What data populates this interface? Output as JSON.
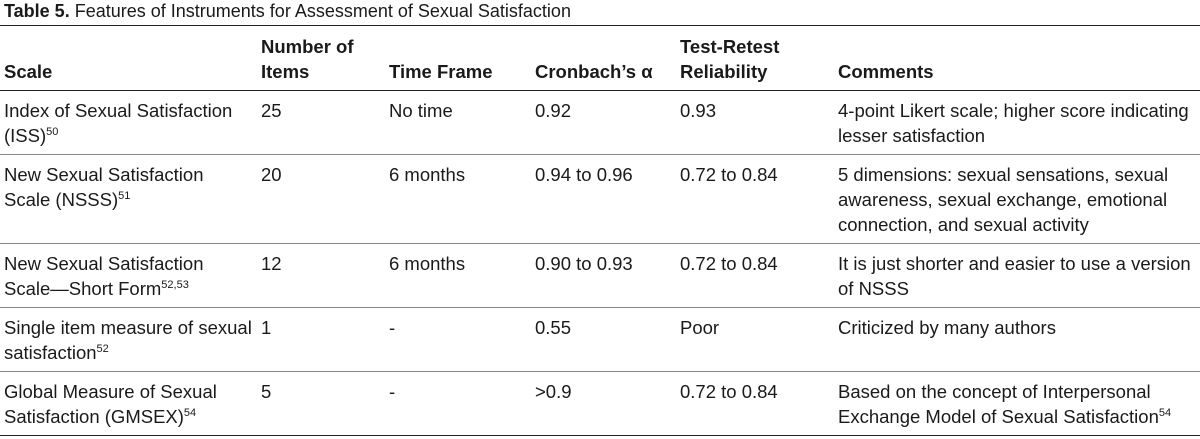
{
  "caption": {
    "label": "Table 5.",
    "text": "Features of Instruments for Assessment of Sexual Satisfaction"
  },
  "headers": {
    "scale": "Scale",
    "items_line1": "Number of",
    "items_line2": "Items",
    "time_frame": "Time Frame",
    "alpha": "Cronbach’s α",
    "retest_line1": "Test-Retest",
    "retest_line2": "Reliability",
    "comments": "Comments"
  },
  "rows": [
    {
      "scale": "Index of Sexual Satisfaction (ISS)",
      "ref": "50",
      "items": "25",
      "time_frame": "No time",
      "alpha": "0.92",
      "retest": "0.93",
      "comments": "4-point Likert scale; higher score indicating lesser satisfaction",
      "comments_ref": ""
    },
    {
      "scale": "New Sexual Satisfaction Scale (NSSS)",
      "ref": "51",
      "items": "20",
      "time_frame": "6 months",
      "alpha": "0.94 to 0.96",
      "retest": "0.72 to 0.84",
      "comments": "5 dimensions: sexual sensations, sexual awareness, sexual exchange, emotional connection, and sexual activity",
      "comments_ref": ""
    },
    {
      "scale": "New Sexual Satisfaction Scale—Short Form",
      "ref": "52,53",
      "items": "12",
      "time_frame": "6 months",
      "alpha": "0.90 to 0.93",
      "retest": "0.72 to 0.84",
      "comments": "It is just shorter and easier to use a version of NSSS",
      "comments_ref": ""
    },
    {
      "scale": "Single item measure of sexual satisfaction",
      "ref": "52",
      "items": "1",
      "time_frame": "-",
      "alpha": "0.55",
      "retest": "Poor",
      "comments": "Criticized by many authors",
      "comments_ref": ""
    },
    {
      "scale": "Global Measure of Sexual Satisfaction (GMSEX)",
      "ref": "54",
      "items": "5",
      "time_frame": "-",
      "alpha": ">0.9",
      "retest": "0.72 to 0.84",
      "comments": "Based on the concept of Interpersonal Exchange Model of Sexual Satisfaction",
      "comments_ref": "54"
    }
  ]
}
